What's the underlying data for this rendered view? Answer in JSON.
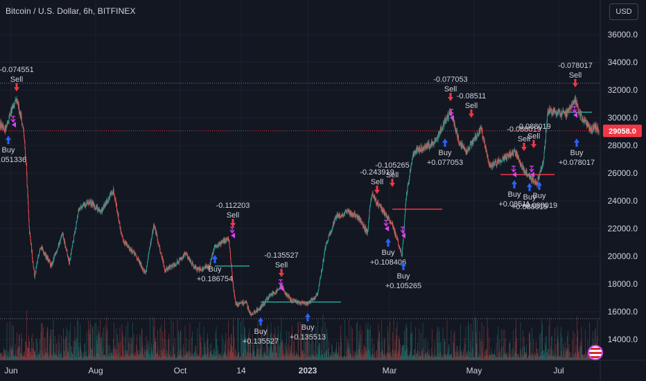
{
  "header": {
    "symbol": "Bitcoin / U.S. Dollar, 6h, BITFINEX",
    "currency": "USD"
  },
  "colors": {
    "background": "#131722",
    "up": "#26a69a",
    "down": "#ef5350",
    "buy": "#2962ff",
    "sell": "#f23645",
    "exit": "#e040fb",
    "grid": "#1e222d",
    "text": "#d1d4dc",
    "last": "#f23645"
  },
  "chart_data": {
    "type": "candlestick",
    "y_axis": {
      "ticks": [
        "14000.0",
        "16000.0",
        "18000.0",
        "20000.0",
        "22000.0",
        "24000.0",
        "26000.0",
        "28000.0",
        "30000.0",
        "32000.0",
        "34000.0",
        "36000.0"
      ],
      "range": [
        12500,
        37000
      ]
    },
    "x_axis": {
      "ticks": [
        "Jun",
        "Aug",
        "Oct",
        "14",
        "2023",
        "Mar",
        "May",
        "Jul"
      ],
      "dates": [
        "2022-06-01",
        "2022-08-01",
        "2022-10-01",
        "2022-11-14",
        "2023-01-01",
        "2023-03-01",
        "2023-05-01",
        "2023-07-01"
      ]
    },
    "x_range": [
      "2022-05-24",
      "2023-07-31"
    ],
    "last_price": {
      "label": "29058.0",
      "value": 29058
    },
    "ref_lines": [
      32500,
      15500
    ],
    "price_path": [
      [
        "2022-05-24",
        29600
      ],
      [
        "2022-05-27",
        29000
      ],
      [
        "2022-06-01",
        30500
      ],
      [
        "2022-06-05",
        31200
      ],
      [
        "2022-06-08",
        30200
      ],
      [
        "2022-06-10",
        29000
      ],
      [
        "2022-06-12",
        26500
      ],
      [
        "2022-06-14",
        22000
      ],
      [
        "2022-06-18",
        18500
      ],
      [
        "2022-06-22",
        20800
      ],
      [
        "2022-06-30",
        19300
      ],
      [
        "2022-07-08",
        21600
      ],
      [
        "2022-07-13",
        19500
      ],
      [
        "2022-07-20",
        23500
      ],
      [
        "2022-07-28",
        23900
      ],
      [
        "2022-08-05",
        23200
      ],
      [
        "2022-08-14",
        24800
      ],
      [
        "2022-08-20",
        21300
      ],
      [
        "2022-08-30",
        20000
      ],
      [
        "2022-09-06",
        18800
      ],
      [
        "2022-09-12",
        22300
      ],
      [
        "2022-09-20",
        19000
      ],
      [
        "2022-09-28",
        19500
      ],
      [
        "2022-10-05",
        20200
      ],
      [
        "2022-10-13",
        19000
      ],
      [
        "2022-10-22",
        19300
      ],
      [
        "2022-10-26",
        20700
      ],
      [
        "2022-11-05",
        21300
      ],
      [
        "2022-11-08",
        18000
      ],
      [
        "2022-11-10",
        16500
      ],
      [
        "2022-11-17",
        16700
      ],
      [
        "2022-11-21",
        15800
      ],
      [
        "2022-11-28",
        16300
      ],
      [
        "2022-12-05",
        17200
      ],
      [
        "2022-12-13",
        17800
      ],
      [
        "2022-12-20",
        16800
      ],
      [
        "2023-01-01",
        16600
      ],
      [
        "2023-01-08",
        17200
      ],
      [
        "2023-01-14",
        20800
      ],
      [
        "2023-01-21",
        22800
      ],
      [
        "2023-01-30",
        23200
      ],
      [
        "2023-02-06",
        22900
      ],
      [
        "2023-02-13",
        21700
      ],
      [
        "2023-02-16",
        24500
      ],
      [
        "2023-02-24",
        23300
      ],
      [
        "2023-03-03",
        22300
      ],
      [
        "2023-03-10",
        20100
      ],
      [
        "2023-03-13",
        24300
      ],
      [
        "2023-03-18",
        27500
      ],
      [
        "2023-03-25",
        27800
      ],
      [
        "2023-04-03",
        28200
      ],
      [
        "2023-04-11",
        30000
      ],
      [
        "2023-04-14",
        30400
      ],
      [
        "2023-04-20",
        28300
      ],
      [
        "2023-04-25",
        27500
      ],
      [
        "2023-05-06",
        29200
      ],
      [
        "2023-05-12",
        26500
      ],
      [
        "2023-05-20",
        26900
      ],
      [
        "2023-05-30",
        27600
      ],
      [
        "2023-06-06",
        26200
      ],
      [
        "2023-06-15",
        25200
      ],
      [
        "2023-06-20",
        26800
      ],
      [
        "2023-06-23",
        30500
      ],
      [
        "2023-07-01",
        30400
      ],
      [
        "2023-07-06",
        30200
      ],
      [
        "2023-07-13",
        31300
      ],
      [
        "2023-07-17",
        30100
      ],
      [
        "2023-07-24",
        29200
      ],
      [
        "2023-07-28",
        29300
      ],
      [
        "2023-07-30",
        29058
      ]
    ],
    "signals": [
      {
        "type": "buy",
        "date": "2022-05-30",
        "value": 29400,
        "text": [
          "Buy",
          "+0.051336"
        ]
      },
      {
        "type": "sell",
        "date": "2022-06-05",
        "value": 31200,
        "text": [
          "-0.074551",
          "Sell"
        ]
      },
      {
        "type": "buy",
        "date": "2022-10-26",
        "value": 20800,
        "text": [
          "Buy",
          "+0.186754"
        ]
      },
      {
        "type": "sell",
        "date": "2022-11-08",
        "value": 21400,
        "text": [
          "-0.112203",
          "Sell"
        ]
      },
      {
        "type": "buy",
        "date": "2022-11-28",
        "value": 16300,
        "text": [
          "Buy",
          "+0.135527"
        ]
      },
      {
        "type": "sell",
        "date": "2022-12-13",
        "value": 17800,
        "text": [
          "-0.135527",
          "Sell"
        ]
      },
      {
        "type": "buy",
        "date": "2023-01-01",
        "value": 16600,
        "text": [
          "Buy",
          "+0.135513"
        ]
      },
      {
        "type": "sell",
        "date": "2023-02-20",
        "value": 23800,
        "text": [
          "-0.243919",
          "Sell"
        ]
      },
      {
        "type": "buy",
        "date": "2023-02-28",
        "value": 22000,
        "text": [
          "Buy",
          "+0.108406"
        ]
      },
      {
        "type": "sell",
        "date": "2023-03-03",
        "value": 24300,
        "text": [
          "-0.105265",
          "Sell"
        ]
      },
      {
        "type": "buy",
        "date": "2023-03-11",
        "value": 20300,
        "text": [
          "Buy",
          "+0.105265"
        ]
      },
      {
        "type": "sell",
        "date": "2023-04-14",
        "value": 30500,
        "text": [
          "-0.077053",
          "Sell"
        ]
      },
      {
        "type": "buy",
        "date": "2023-04-10",
        "value": 29200,
        "text": [
          "Buy",
          "+0.077053"
        ]
      },
      {
        "type": "sell",
        "date": "2023-04-29",
        "value": 29300,
        "text": [
          "-0.08511",
          "Sell"
        ]
      },
      {
        "type": "buy",
        "date": "2023-05-30",
        "value": 26200,
        "text": [
          "Buy",
          "+0.08511"
        ]
      },
      {
        "type": "sell",
        "date": "2023-06-06",
        "value": 26900,
        "text": [
          "-0.088019",
          "Sell"
        ]
      },
      {
        "type": "buy",
        "date": "2023-06-10",
        "value": 26000,
        "text": [
          "Buy",
          "+0.088019"
        ]
      },
      {
        "type": "sell",
        "date": "2023-06-13",
        "value": 27100,
        "text": [
          "-0.088019",
          "Sell"
        ]
      },
      {
        "type": "buy",
        "date": "2023-06-17",
        "value": 26100,
        "text": [
          "Buy",
          "+0.088019"
        ]
      },
      {
        "type": "sell",
        "date": "2023-07-13",
        "value": 31500,
        "text": [
          "-0.078017",
          "Sell"
        ]
      },
      {
        "type": "buy",
        "date": "2023-07-14",
        "value": 29200,
        "text": [
          "Buy",
          "+0.078017"
        ]
      }
    ],
    "exits": [
      {
        "date": "2022-06-03",
        "value": 29500
      },
      {
        "date": "2022-11-08",
        "value": 21500
      },
      {
        "date": "2022-12-13",
        "value": 17700
      },
      {
        "date": "2023-02-27",
        "value": 22000
      },
      {
        "date": "2023-03-11",
        "value": 21500
      },
      {
        "date": "2023-04-15",
        "value": 30000
      },
      {
        "date": "2023-05-30",
        "value": 25900
      },
      {
        "date": "2023-06-12",
        "value": 25900
      },
      {
        "date": "2023-07-13",
        "value": 30200
      }
    ],
    "levels": [
      {
        "from": "2022-10-26",
        "to": "2022-11-20",
        "value": 19300,
        "color": "#26a69a"
      },
      {
        "from": "2022-11-28",
        "to": "2023-01-25",
        "value": 16700,
        "color": "#26a69a"
      },
      {
        "from": "2023-03-03",
        "to": "2023-04-08",
        "value": 23400,
        "color": "#f23645"
      },
      {
        "from": "2023-05-20",
        "to": "2023-06-28",
        "value": 25900,
        "color": "#f23645"
      },
      {
        "from": "2023-07-05",
        "to": "2023-07-25",
        "value": 30400,
        "color": "#26a69a"
      }
    ]
  }
}
